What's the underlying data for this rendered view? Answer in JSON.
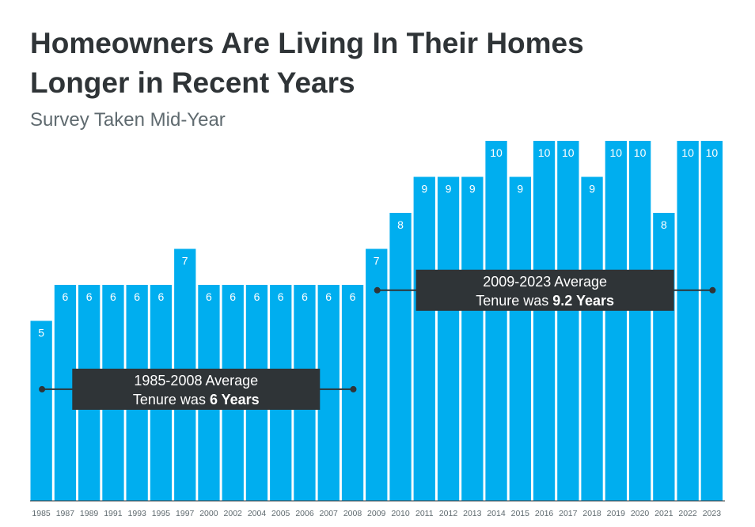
{
  "header": {
    "title_line1": "Homeowners Are Living In Their Homes",
    "title_line2": "Longer in Recent Years",
    "subtitle": "Survey Taken Mid-Year"
  },
  "colors": {
    "bar": "#00aeef",
    "annotation": "#2f3437",
    "title": "#2f3437"
  },
  "chart_data": {
    "type": "bar",
    "title": "Homeowners Are Living In Their Homes Longer in Recent Years",
    "subtitle": "Survey Taken Mid-Year",
    "categories": [
      "1985",
      "1987",
      "1989",
      "1991",
      "1993",
      "1995",
      "1997",
      "2000",
      "2002",
      "2004",
      "2005",
      "2006",
      "2007",
      "2008",
      "2009",
      "2010",
      "2011",
      "2012",
      "2013",
      "2014",
      "2015",
      "2016",
      "2017",
      "2018",
      "2019",
      "2020",
      "2021",
      "2022",
      "2023"
    ],
    "values": [
      5,
      6,
      6,
      6,
      6,
      6,
      7,
      6,
      6,
      6,
      6,
      6,
      6,
      6,
      7,
      8,
      9,
      9,
      9,
      10,
      9,
      10,
      10,
      9,
      10,
      10,
      8,
      10,
      10
    ],
    "ylim": [
      0,
      10
    ],
    "grid": false,
    "annotations": [
      {
        "line1": "1985-2008 Average",
        "line2_prefix": "Tenure was ",
        "line2_bold": "6 Years",
        "value": 3.1,
        "from": "1985",
        "to": "2008"
      },
      {
        "line1": "2009-2023 Average",
        "line2_prefix": "Tenure was ",
        "line2_bold": "9.2 Years",
        "value": 5.85,
        "from": "2009",
        "to": "2023"
      }
    ]
  }
}
